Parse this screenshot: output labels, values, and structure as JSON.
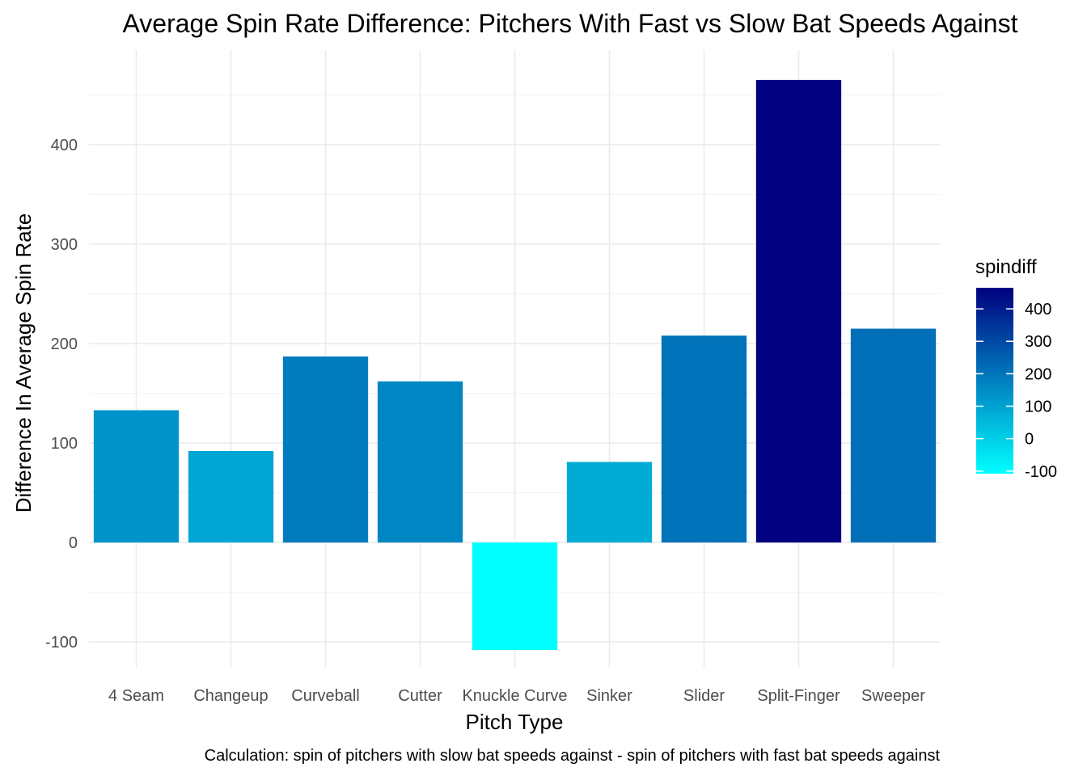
{
  "chart_data": {
    "type": "bar",
    "title": "Average Spin Rate Difference: Pitchers With Fast vs Slow Bat Speeds Against",
    "xlabel": "Pitch Type",
    "ylabel": "Difference In Average Spin Rate",
    "caption": "Calculation: spin of pitchers with slow bat speeds against - spin of pitchers with fast bat speeds against",
    "categories": [
      "4 Seam",
      "Changeup",
      "Curveball",
      "Cutter",
      "Knuckle Curve",
      "Sinker",
      "Slider",
      "Split-Finger",
      "Sweeper"
    ],
    "values": [
      133,
      92,
      187,
      162,
      -108,
      81,
      208,
      465,
      215
    ],
    "ylim": [
      -125,
      495
    ],
    "y_ticks": [
      -100,
      0,
      100,
      200,
      300,
      400
    ],
    "y_tick_labels": [
      "-100",
      "0",
      "100",
      "200",
      "300",
      "400"
    ],
    "grid": true,
    "legend": {
      "title": "spindiff",
      "placement": "right",
      "type": "colorbar",
      "range": [
        -108,
        465
      ],
      "ticks": [
        400,
        300,
        200,
        100,
        0,
        -100
      ],
      "tick_labels": [
        "400",
        "300",
        "200",
        "100",
        "0",
        "-100"
      ],
      "color_low": "#00FFFF",
      "color_high": "#000080"
    }
  }
}
